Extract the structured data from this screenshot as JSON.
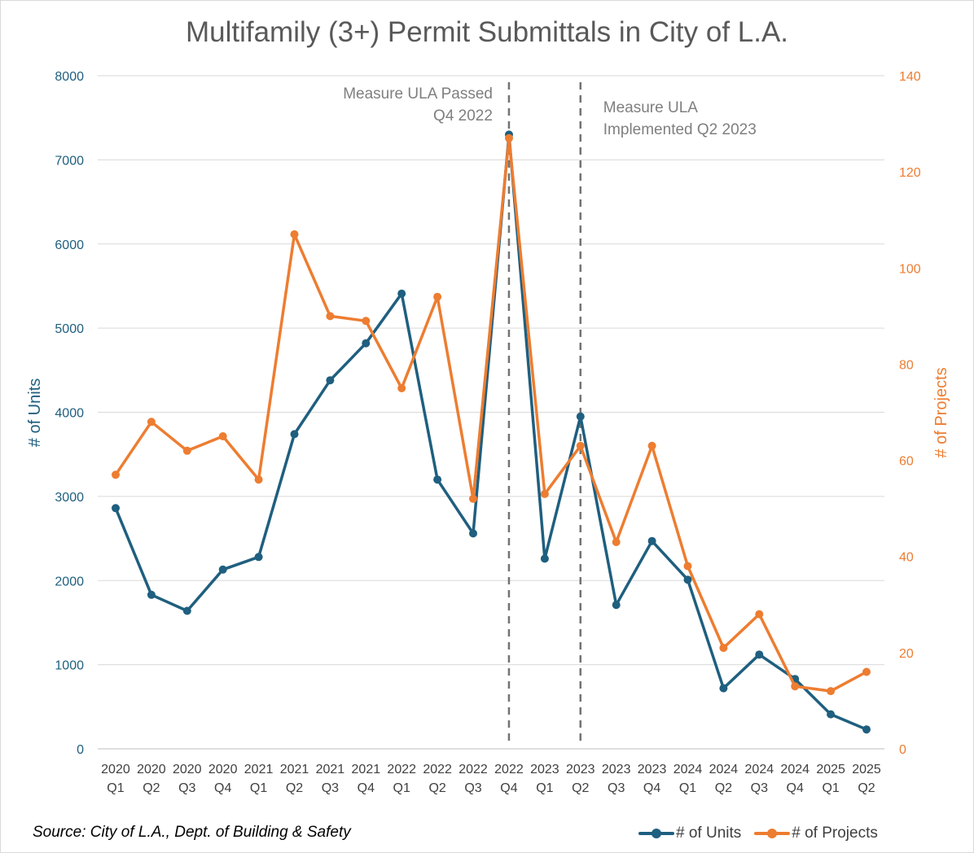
{
  "chart_data": {
    "type": "line",
    "title": "Multifamily (3+) Permit Submittals in City of L.A.",
    "source": "Source: City of L.A., Dept. of Building & Safety",
    "x_years": [
      "2020",
      "2020",
      "2020",
      "2020",
      "2021",
      "2021",
      "2021",
      "2021",
      "2022",
      "2022",
      "2022",
      "2022",
      "2023",
      "2023",
      "2023",
      "2023",
      "2024",
      "2024",
      "2024",
      "2024",
      "2025",
      "2025"
    ],
    "x_quarters": [
      "Q1",
      "Q2",
      "Q3",
      "Q4",
      "Q1",
      "Q2",
      "Q3",
      "Q4",
      "Q1",
      "Q2",
      "Q3",
      "Q4",
      "Q1",
      "Q2",
      "Q3",
      "Q4",
      "Q1",
      "Q2",
      "Q3",
      "Q4",
      "Q1",
      "Q2"
    ],
    "y_left": {
      "label": "# of Units",
      "range": [
        0,
        8000
      ],
      "ticks": [
        "0",
        "1000",
        "2000",
        "3000",
        "4000",
        "5000",
        "6000",
        "7000",
        "8000"
      ]
    },
    "y_right": {
      "label": "# of Projects",
      "range": [
        0,
        140
      ],
      "ticks": [
        "0",
        "20",
        "40",
        "60",
        "80",
        "100",
        "120",
        "140"
      ]
    },
    "grid": true,
    "legend_position": "bottom-right",
    "series": [
      {
        "name": "# of Units",
        "axis": "left",
        "color": "#1f5f7f",
        "values": [
          2860,
          1830,
          1640,
          2130,
          2280,
          3740,
          4380,
          4820,
          5410,
          3200,
          2560,
          7300,
          2260,
          3950,
          1710,
          2470,
          2010,
          720,
          1120,
          830,
          410,
          230
        ]
      },
      {
        "name": "# of Projects",
        "axis": "right",
        "color": "#ed7d31",
        "values": [
          57,
          68,
          62,
          65,
          56,
          107,
          90,
          89,
          75,
          94,
          52,
          127,
          53,
          63,
          43,
          63,
          38,
          21,
          28,
          13,
          12,
          16
        ]
      }
    ],
    "annotations": [
      {
        "at_index": 11,
        "lines": [
          "Measure ULA Passed",
          "Q4 2022"
        ],
        "align": "right"
      },
      {
        "at_index": 13,
        "lines": [
          "Measure ULA",
          "Implemented Q2 2023"
        ],
        "align": "left"
      }
    ]
  }
}
